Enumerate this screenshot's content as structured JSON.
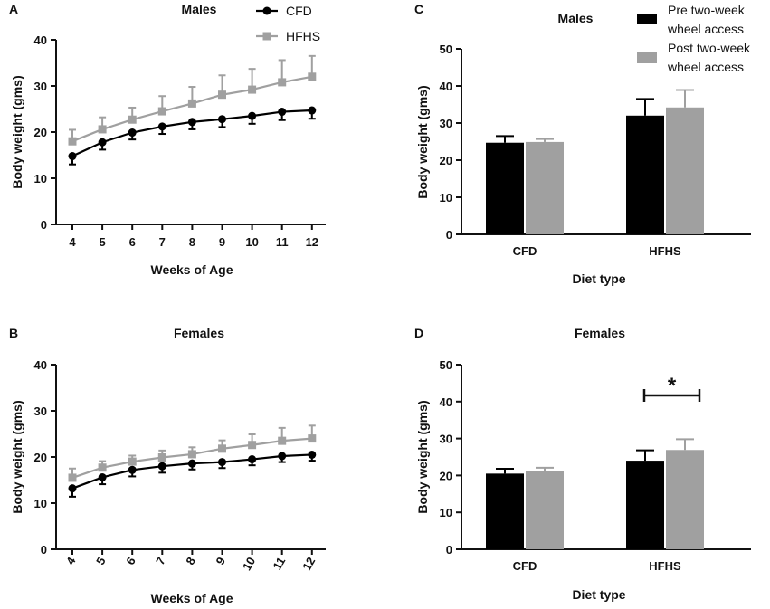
{
  "colors": {
    "cfd": "#000000",
    "hfhs": "#a0a0a0",
    "axis": "#111111"
  },
  "chart_data": [
    {
      "id": "A",
      "type": "line",
      "panel_label": "A",
      "title": "Males",
      "xlabel": "Weeks of Age",
      "ylabel": "Body weight (gms)",
      "x": [
        4,
        5,
        6,
        7,
        8,
        9,
        10,
        11,
        12
      ],
      "ylim": [
        0,
        40
      ],
      "yticks": [
        0,
        10,
        20,
        30,
        40
      ],
      "series": [
        {
          "name": "CFD",
          "marker": "circle",
          "values": [
            14.8,
            17.8,
            19.9,
            21.2,
            22.2,
            22.8,
            23.5,
            24.4,
            24.7
          ],
          "err": [
            1.8,
            1.6,
            1.5,
            1.6,
            1.6,
            1.7,
            1.7,
            1.8,
            1.8
          ]
        },
        {
          "name": "HFHS",
          "marker": "square",
          "values": [
            18.0,
            20.6,
            22.7,
            24.5,
            26.2,
            28.1,
            29.2,
            30.8,
            32.0
          ],
          "err": [
            2.5,
            2.6,
            2.6,
            3.3,
            3.6,
            4.2,
            4.5,
            4.8,
            4.5
          ]
        }
      ]
    },
    {
      "id": "B",
      "type": "line",
      "panel_label": "B",
      "title": "Females",
      "xlabel": "Weeks of Age",
      "ylabel": "Body weight (gms)",
      "x": [
        4,
        5,
        6,
        7,
        8,
        9,
        10,
        11,
        12
      ],
      "ylim": [
        0,
        40
      ],
      "yticks": [
        0,
        10,
        20,
        30,
        40
      ],
      "series": [
        {
          "name": "CFD",
          "marker": "circle",
          "values": [
            13.2,
            15.6,
            17.2,
            18.0,
            18.6,
            18.9,
            19.5,
            20.2,
            20.5
          ],
          "err": [
            1.8,
            1.5,
            1.4,
            1.4,
            1.3,
            1.3,
            1.3,
            1.3,
            1.3
          ]
        },
        {
          "name": "HFHS",
          "marker": "square",
          "values": [
            15.5,
            17.7,
            19.0,
            19.9,
            20.6,
            21.8,
            22.6,
            23.5,
            24.0
          ],
          "err": [
            2.0,
            1.4,
            1.3,
            1.5,
            1.5,
            1.8,
            2.3,
            2.8,
            2.8
          ]
        }
      ]
    },
    {
      "id": "C",
      "type": "bar",
      "panel_label": "C",
      "title": "Males",
      "xlabel": "Diet type",
      "ylabel": "Body weight (gms)",
      "categories": [
        "CFD",
        "HFHS"
      ],
      "ylim": [
        0,
        50
      ],
      "yticks": [
        0,
        10,
        20,
        30,
        40,
        50
      ],
      "series": [
        {
          "name": "Pre two-week wheel access",
          "values": [
            24.7,
            32.0
          ],
          "err": [
            1.8,
            4.5
          ]
        },
        {
          "name": "Post two-week wheel access",
          "values": [
            24.9,
            34.2
          ],
          "err": [
            0.8,
            4.7
          ]
        }
      ],
      "significance": null
    },
    {
      "id": "D",
      "type": "bar",
      "panel_label": "D",
      "title": "Females",
      "xlabel": "Diet type",
      "ylabel": "Body weight (gms)",
      "categories": [
        "CFD",
        "HFHS"
      ],
      "ylim": [
        0,
        50
      ],
      "yticks": [
        0,
        10,
        20,
        30,
        40,
        50
      ],
      "series": [
        {
          "name": "Pre two-week wheel access",
          "values": [
            20.5,
            24.0
          ],
          "err": [
            1.3,
            2.8
          ]
        },
        {
          "name": "Post two-week wheel access",
          "values": [
            21.3,
            26.9
          ],
          "err": [
            0.8,
            2.9
          ]
        }
      ],
      "significance": {
        "label": "*",
        "category": "HFHS"
      }
    }
  ],
  "legends": {
    "line": [
      {
        "label": "CFD",
        "marker": "circle",
        "color": "#000000"
      },
      {
        "label": "HFHS",
        "marker": "square",
        "color": "#a0a0a0"
      }
    ],
    "bar": [
      {
        "lines": [
          "Pre two-week",
          "wheel access"
        ],
        "color": "#000000"
      },
      {
        "lines": [
          "Post two-week",
          "wheel access"
        ],
        "color": "#a0a0a0"
      }
    ]
  }
}
